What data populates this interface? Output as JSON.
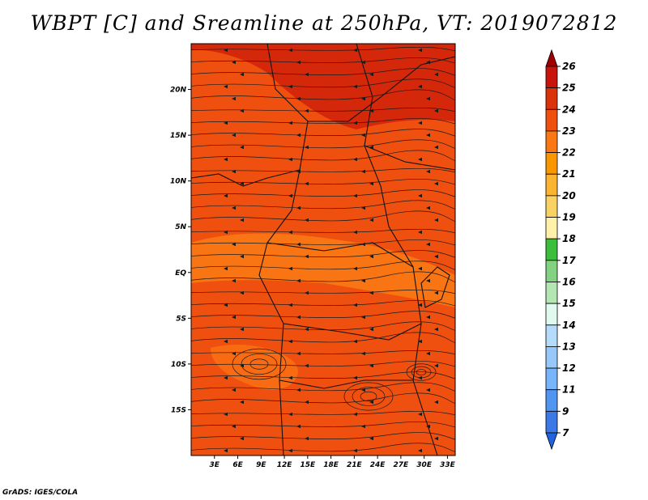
{
  "title": "WBPT [C] and Sreamline at 250hPa, VT: 2019072812",
  "footer": "GrADS: IGES/COLA",
  "map": {
    "lon_range": [
      0,
      34
    ],
    "lat_range": [
      -20,
      25
    ],
    "lon_ticks": [
      "3E",
      "6E",
      "9E",
      "12E",
      "15E",
      "18E",
      "21E",
      "24E",
      "27E",
      "30E",
      "33E"
    ],
    "lat_ticks": [
      "20N",
      "15N",
      "10N",
      "5N",
      "EQ",
      "5S",
      "10S",
      "15S"
    ],
    "background_color": "#f0500f",
    "regions": [
      {
        "name": "north-hot",
        "color": "#d2230a"
      },
      {
        "name": "cool-belt",
        "color": "#fa7814"
      },
      {
        "name": "southern-patch",
        "color": "#fa6e14"
      }
    ]
  },
  "colorbar": {
    "levels": [
      "26",
      "25",
      "24",
      "23",
      "22",
      "21",
      "20",
      "19",
      "18",
      "17",
      "16",
      "15",
      "14",
      "13",
      "12",
      "11",
      "9",
      "7"
    ],
    "colors": [
      "#a00000",
      "#c8140a",
      "#dc320a",
      "#f0500f",
      "#fa7814",
      "#fa9600",
      "#fab432",
      "#fad264",
      "#fff0aa",
      "#3cbe3c",
      "#82d282",
      "#b4e6b4",
      "#e1faf0",
      "#b4dcfa",
      "#96c8fa",
      "#78b4fa",
      "#5096f0",
      "#3c78e6",
      "#1e64dc"
    ]
  }
}
